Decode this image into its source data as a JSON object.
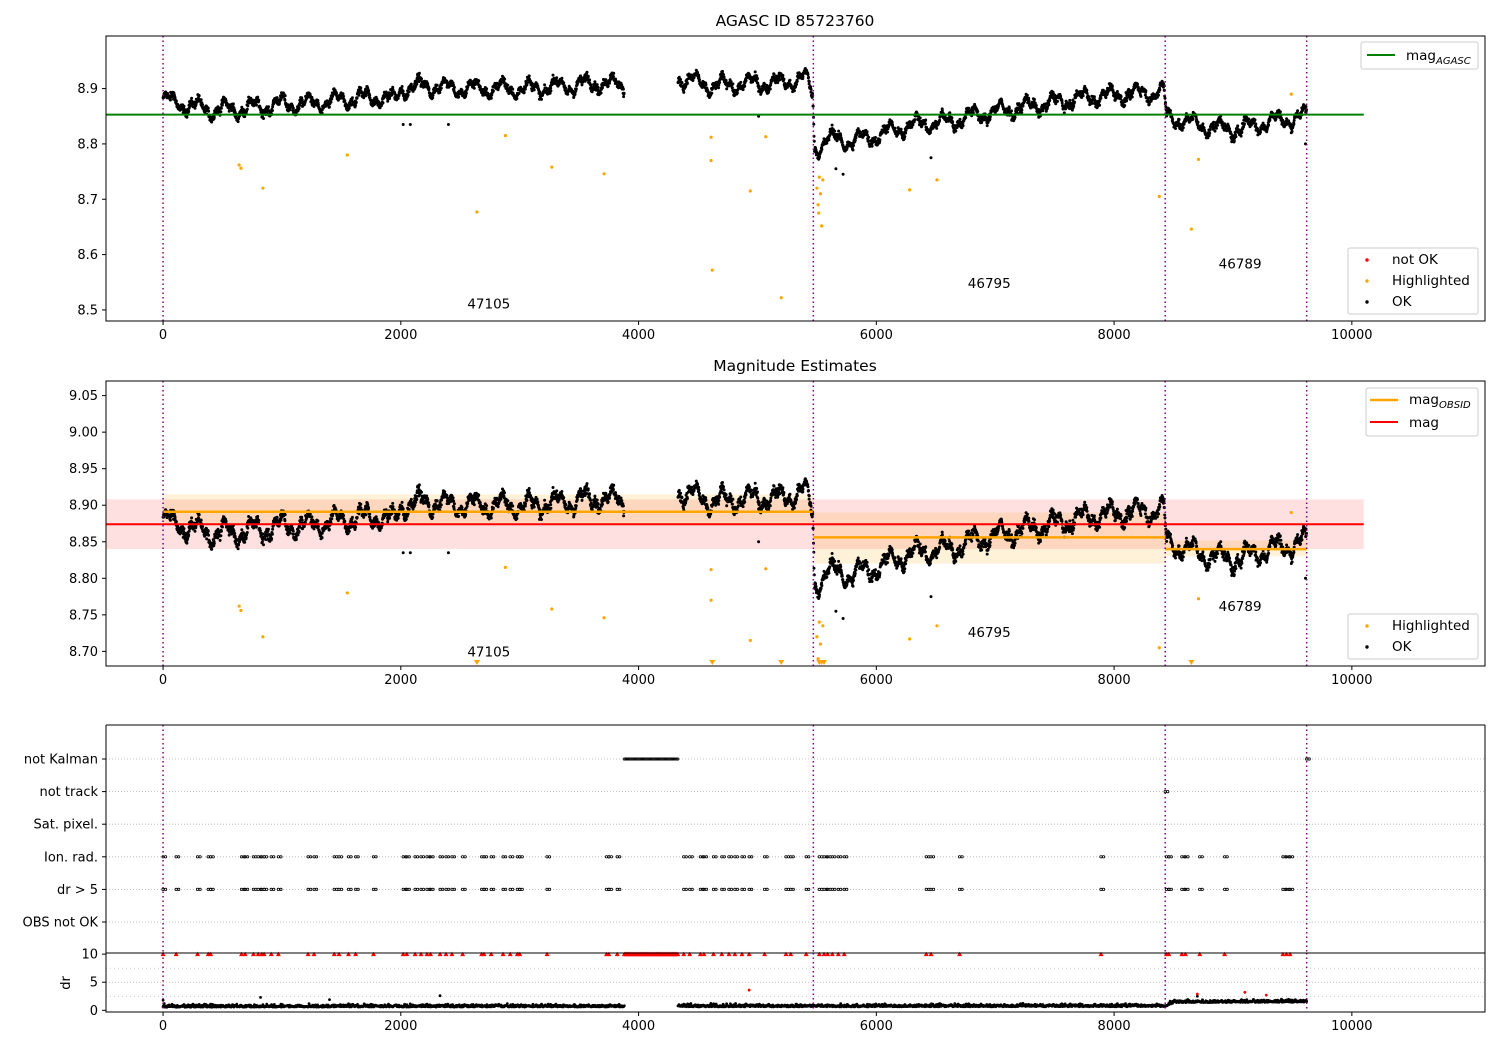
{
  "figure": {
    "title_top": "AGASC ID 85723760",
    "title_mid": "Magnitude Estimates"
  },
  "colors": {
    "ok": "#000000",
    "highlighted": "#ffa500",
    "not_ok": "#ff0000",
    "agasc_line": "#008000",
    "obsid_line": "#ffa500",
    "mag_line": "#ff0000",
    "obs_boundary": "#800080",
    "grid": "#b0b0b0"
  },
  "chart_data": [
    {
      "type": "scatter",
      "title": "AGASC ID 85723760",
      "xlabel": "",
      "ylabel": "",
      "xlim": [
        -480,
        11120
      ],
      "ylim": [
        8.48,
        8.995
      ],
      "xticks": [
        0,
        2000,
        4000,
        6000,
        8000,
        10000
      ],
      "yticks": [
        8.5,
        8.6,
        8.7,
        8.8,
        8.9
      ],
      "ytick_labels": [
        "8.5",
        "8.6",
        "8.7",
        "8.8",
        "8.9"
      ],
      "obs_boundaries": [
        0,
        5470,
        8430,
        9620
      ],
      "obsid_annotations": [
        {
          "label": "47105",
          "x": 2740,
          "y": 8.503
        },
        {
          "label": "46795",
          "x": 6950,
          "y": 8.54
        },
        {
          "label": "46789",
          "x": 9060,
          "y": 8.575
        }
      ],
      "lines": [
        {
          "name": "mag_AGASC",
          "y": 8.853,
          "x_range": [
            -480,
            10100
          ]
        }
      ],
      "ok_trend": [
        [
          0,
          8.88
        ],
        [
          200,
          8.87
        ],
        [
          400,
          8.862
        ],
        [
          600,
          8.863
        ],
        [
          800,
          8.866
        ],
        [
          1000,
          8.872
        ],
        [
          1200,
          8.872
        ],
        [
          1400,
          8.876
        ],
        [
          1600,
          8.882
        ],
        [
          1800,
          8.885
        ],
        [
          1950,
          8.878
        ],
        [
          2000,
          8.9
        ],
        [
          2200,
          8.905
        ],
        [
          2500,
          8.9
        ],
        [
          2800,
          8.9
        ],
        [
          3100,
          8.9
        ],
        [
          3400,
          8.905
        ],
        [
          3700,
          8.91
        ],
        [
          3880,
          8.905
        ],
        [
          4330,
          8.92
        ],
        [
          4600,
          8.905
        ],
        [
          5000,
          8.91
        ],
        [
          5200,
          8.91
        ],
        [
          5400,
          8.92
        ],
        [
          5465,
          8.89
        ],
        [
          5480,
          8.79
        ],
        [
          5600,
          8.81
        ],
        [
          5800,
          8.805
        ],
        [
          6000,
          8.815
        ],
        [
          6300,
          8.835
        ],
        [
          6600,
          8.84
        ],
        [
          6900,
          8.855
        ],
        [
          7200,
          8.865
        ],
        [
          7500,
          8.875
        ],
        [
          7800,
          8.885
        ],
        [
          8100,
          8.89
        ],
        [
          8420,
          8.895
        ],
        [
          8440,
          8.85
        ],
        [
          8700,
          8.835
        ],
        [
          9000,
          8.825
        ],
        [
          9300,
          8.84
        ],
        [
          9620,
          8.85
        ]
      ],
      "gaps": [
        [
          3880,
          4330
        ]
      ],
      "highlighted_points": [
        [
          640,
          8.762
        ],
        [
          655,
          8.756
        ],
        [
          840,
          8.72
        ],
        [
          1550,
          8.78
        ],
        [
          2640,
          8.677
        ],
        [
          2880,
          8.815
        ],
        [
          3270,
          8.758
        ],
        [
          3710,
          8.746
        ],
        [
          4610,
          8.812
        ],
        [
          4610,
          8.77
        ],
        [
          4620,
          8.572
        ],
        [
          4940,
          8.715
        ],
        [
          5070,
          8.813
        ],
        [
          5200,
          8.522
        ],
        [
          5500,
          8.72
        ],
        [
          5510,
          8.69
        ],
        [
          5515,
          8.675
        ],
        [
          5520,
          8.74
        ],
        [
          5530,
          8.71
        ],
        [
          5540,
          8.652
        ],
        [
          5550,
          8.735
        ],
        [
          6280,
          8.717
        ],
        [
          6510,
          8.735
        ],
        [
          8380,
          8.705
        ],
        [
          8650,
          8.646
        ],
        [
          8710,
          8.772
        ],
        [
          9490,
          8.89
        ]
      ],
      "legends": [
        {
          "position": "top-right",
          "entries": [
            {
              "label": "mag",
              "sub": "AGASC",
              "kind": "line",
              "color": "#008000"
            }
          ]
        },
        {
          "position": "bottom-right",
          "entries": [
            {
              "label": "not OK",
              "kind": "marker",
              "color": "#ff0000"
            },
            {
              "label": "Highlighted",
              "kind": "marker",
              "color": "#ffa500"
            },
            {
              "label": "OK",
              "kind": "marker",
              "color": "#000000"
            }
          ]
        }
      ]
    },
    {
      "type": "scatter",
      "title": "Magnitude Estimates",
      "xlim": [
        -480,
        11120
      ],
      "ylim": [
        8.68,
        9.07
      ],
      "xticks": [
        0,
        2000,
        4000,
        6000,
        8000,
        10000
      ],
      "yticks": [
        8.7,
        8.75,
        8.8,
        8.85,
        8.9,
        8.95,
        9.0,
        9.05
      ],
      "ytick_labels": [
        "8.70",
        "8.75",
        "8.80",
        "8.85",
        "8.90",
        "8.95",
        "9.00",
        "9.05"
      ],
      "obs_boundaries": [
        0,
        5470,
        8430,
        9620
      ],
      "obsid_annotations": [
        {
          "label": "47105",
          "x": 2740,
          "y": 8.693
        },
        {
          "label": "46795",
          "x": 6950,
          "y": 8.72
        },
        {
          "label": "46789",
          "x": 9060,
          "y": 8.755
        }
      ],
      "mag_band": {
        "center": 8.874,
        "low": 8.84,
        "high": 8.908,
        "x_range": [
          -480,
          10100
        ]
      },
      "obsid_segments": [
        {
          "x_range": [
            0,
            5470
          ],
          "mag": 8.891,
          "low": 8.875,
          "high": 8.915
        },
        {
          "x_range": [
            5470,
            8430
          ],
          "mag": 8.856,
          "low": 8.82,
          "high": 8.89
        },
        {
          "x_range": [
            8430,
            9620
          ],
          "mag": 8.84,
          "low": 8.83,
          "high": 8.852
        }
      ],
      "offscale_markers": [
        2640,
        4620,
        5200,
        5520,
        5540,
        5560,
        8650
      ],
      "legends": [
        {
          "position": "top-right",
          "entries": [
            {
              "label": "mag",
              "sub": "OBSID",
              "kind": "line",
              "color": "#ffa500"
            },
            {
              "label": "mag",
              "kind": "line",
              "color": "#ff0000"
            }
          ]
        },
        {
          "position": "bottom-right",
          "entries": [
            {
              "label": "Highlighted",
              "kind": "marker",
              "color": "#ffa500"
            },
            {
              "label": "OK",
              "kind": "marker",
              "color": "#000000"
            }
          ]
        }
      ]
    },
    {
      "type": "scatter",
      "title": "",
      "xlim": [
        -480,
        11120
      ],
      "flag_rows": [
        "not Kalman",
        "not track",
        "Sat. pixel.",
        "Ion. rad.",
        "dr > 5",
        "OBS not OK"
      ],
      "flag_events": {
        "not Kalman": {
          "range": [
            3880,
            4330
          ],
          "points": [
            9620
          ]
        },
        "not track": {
          "points": [
            8430
          ]
        },
        "Ion. rad.": {
          "points": [
            0,
            110,
            290,
            380,
            400,
            660,
            690,
            760,
            800,
            830,
            850,
            910,
            970,
            1220,
            1270,
            1440,
            1480,
            1560,
            1620,
            1770,
            2020,
            2050,
            2120,
            2170,
            2220,
            2250,
            2330,
            2380,
            2430,
            2520,
            2680,
            2700,
            2760,
            2860,
            2920,
            2980,
            3000,
            3230,
            3730,
            3750,
            3820,
            4380,
            4430,
            4520,
            4550,
            4630,
            4700,
            4760,
            4810,
            4870,
            4930,
            5060,
            5240,
            5280,
            5410,
            5520,
            5560,
            5590,
            5630,
            5680,
            5730,
            6420,
            6460,
            6700,
            7890,
            8440,
            8460,
            8570,
            8600,
            8720,
            8930,
            9420,
            9450,
            9480
          ]
        },
        "dr > 5": {
          "points": [
            0,
            110,
            290,
            380,
            400,
            660,
            690,
            760,
            800,
            830,
            850,
            910,
            970,
            1220,
            1270,
            1440,
            1480,
            1560,
            1620,
            1770,
            2020,
            2050,
            2120,
            2170,
            2220,
            2250,
            2330,
            2380,
            2430,
            2520,
            2680,
            2700,
            2760,
            2860,
            2920,
            2980,
            3000,
            3230,
            3730,
            3750,
            3820,
            4380,
            4430,
            4520,
            4550,
            4630,
            4700,
            4760,
            4810,
            4870,
            4930,
            5060,
            5240,
            5280,
            5410,
            5520,
            5560,
            5590,
            5630,
            5680,
            5730,
            6420,
            6460,
            6700,
            7890,
            8440,
            8460,
            8570,
            8600,
            8720,
            8930,
            9420,
            9450,
            9480
          ]
        }
      }
    },
    {
      "type": "scatter",
      "title": "",
      "ylabel": "dr",
      "xlim": [
        -480,
        11120
      ],
      "ylim": [
        -0.3,
        10.2
      ],
      "xticks": [
        0,
        2000,
        4000,
        6000,
        8000,
        10000
      ],
      "yticks": [
        0,
        5,
        10
      ],
      "obs_boundaries": [
        0,
        5470,
        8430,
        9620
      ],
      "dr_baseline": [
        [
          0,
          0.7
        ],
        [
          8430,
          0.8
        ],
        [
          8500,
          1.5
        ],
        [
          9620,
          1.6
        ]
      ],
      "dr_outliers_ok": [
        [
          0,
          1.8
        ],
        [
          10,
          1.2
        ],
        [
          820,
          2.3
        ],
        [
          1400,
          1.9
        ],
        [
          2330,
          2.6
        ],
        [
          8700,
          2.5
        ]
      ],
      "dr_outliers_not_ok": [
        [
          4930,
          3.6
        ],
        [
          9100,
          3.2
        ],
        [
          9280,
          2.7
        ],
        [
          8700,
          2.9
        ]
      ],
      "dr_clipped_at": 10
    }
  ]
}
